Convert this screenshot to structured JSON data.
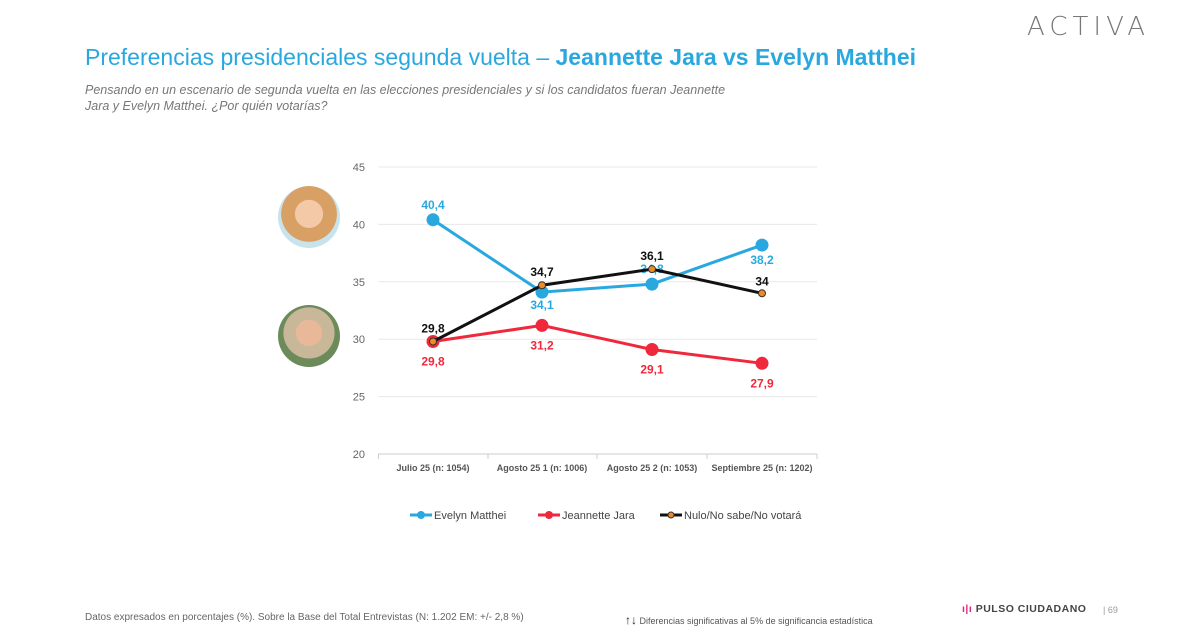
{
  "header": {
    "logo": "ACTIVA",
    "title_regular": "Preferencias presidenciales segunda vuelta – ",
    "title_bold": "Jeannette Jara vs Evelyn Matthei",
    "subtitle": "Pensando en un escenario de segunda vuelta en las elecciones presidenciales y si los candidatos fueran Jeannette Jara y Evelyn Matthei. ¿Por quién votarías?"
  },
  "chart_data": {
    "type": "line",
    "categories": [
      "Julio 25 (n: 1054)",
      "Agosto 25 1 (n: 1006)",
      "Agosto 25 2 (n: 1053)",
      "Septiembre 25 (n: 1202)"
    ],
    "ylim": [
      20,
      45
    ],
    "yticks": [
      20,
      25,
      30,
      35,
      40,
      45
    ],
    "grid": true,
    "legend_position": "bottom",
    "series": [
      {
        "name": "Evelyn Matthei",
        "values": [
          40.4,
          34.1,
          34.8,
          38.2
        ],
        "labels": [
          "40,4",
          "34,1",
          "34,8",
          "38,2"
        ],
        "color": "#29a8e0"
      },
      {
        "name": "Jeannette Jara",
        "values": [
          29.8,
          31.2,
          29.1,
          27.9
        ],
        "labels": [
          "29,8",
          "31,2",
          "29,1",
          "27,9"
        ],
        "color": "#f0283c"
      },
      {
        "name": "Nulo/No sabe/No votará",
        "values": [
          29.8,
          34.7,
          36.1,
          34
        ],
        "labels": [
          "29,8",
          "34,7",
          "36,1",
          "34"
        ],
        "color": "#111111",
        "marker": "#f08a24"
      }
    ]
  },
  "footer": {
    "note": "Datos expresados en porcentajes (%). Sobre la Base del Total Entrevistas (N: 1.202  EM: +/- 2,8 %)",
    "sig_icon": "up-down-arrows-icon",
    "sig": "Diferencias  significativas  al 5% de significancia estadística",
    "brand": "PULSO CIUDADANO",
    "page": "| 69"
  }
}
